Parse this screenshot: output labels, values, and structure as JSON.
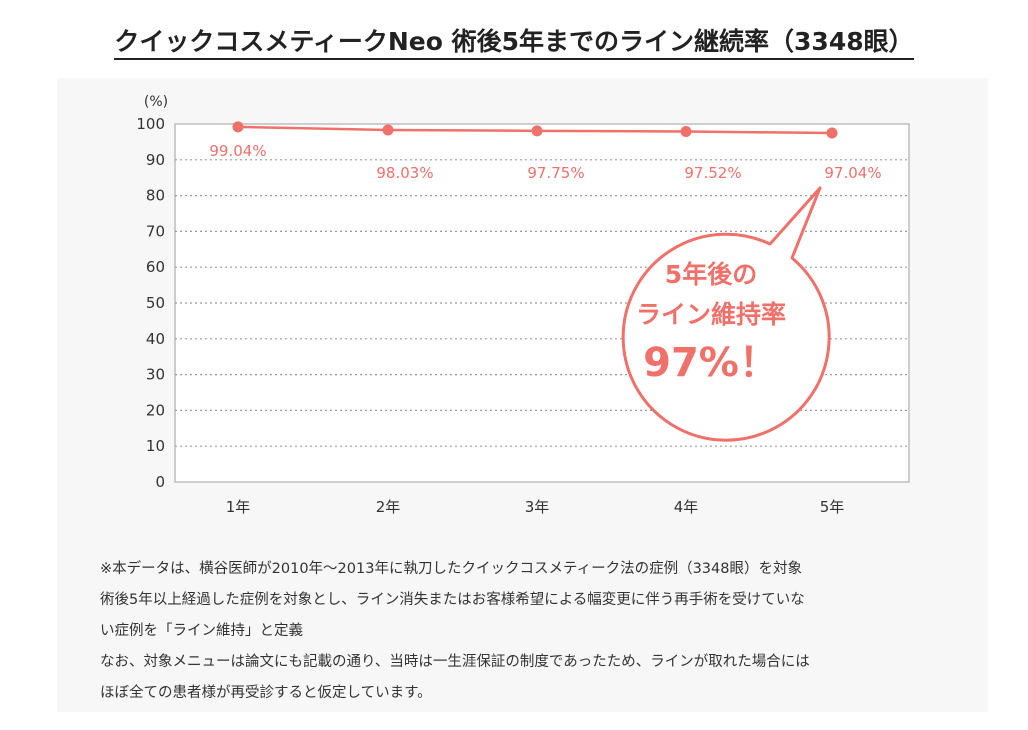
{
  "title": "クイックコスメティークNeo 術後5年までのライン継続率（3348眼）",
  "chart_data": {
    "type": "line",
    "categories": [
      "1年",
      "2年",
      "3年",
      "4年",
      "5年"
    ],
    "series": [
      {
        "values": [
          99.04,
          98.03,
          97.75,
          97.52,
          97.04
        ]
      }
    ],
    "data_labels": [
      "99.04%",
      "98.03%",
      "97.75%",
      "97.52%",
      "97.04%"
    ],
    "yunit": "(%)",
    "ylim": [
      0,
      100
    ],
    "yticks": [
      0,
      10,
      20,
      30,
      40,
      50,
      60,
      70,
      80,
      90,
      100
    ],
    "grid": true,
    "color": "#f0706a",
    "callout": {
      "line1": "5年後の",
      "line2": "ライン維持率",
      "line3": "97%！"
    }
  },
  "notes": [
    "※本データは、横谷医師が2010年〜2013年に執刀したクイックコスメティーク法の症例（3348眼）を対象",
    "術後5年以上経過した症例を対象とし、ライン消失またはお客様希望による幅変更に伴う再手術を受けていな",
    "い症例を「ライン維持」と定義",
    "なお、対象メニューは論文にも記載の通り、当時は一生涯保証の制度であったため、ラインが取れた場合には",
    "ほぼ全ての患者様が再受診すると仮定しています。"
  ]
}
